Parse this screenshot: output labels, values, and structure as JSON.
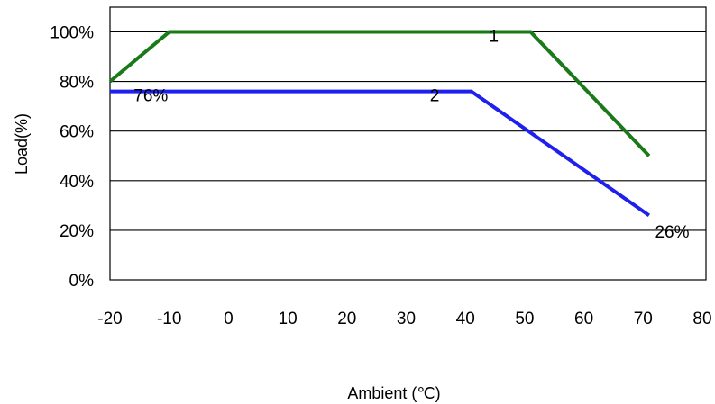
{
  "chart_data": {
    "type": "line",
    "xlabel": "Ambient (℃)",
    "ylabel": "Load(%)",
    "xlim": [
      -20,
      80
    ],
    "ylim": [
      0,
      110
    ],
    "x_ticks": [
      -20,
      -10,
      0,
      10,
      20,
      30,
      40,
      50,
      60,
      70,
      80
    ],
    "x_tick_labels": [
      "-20",
      "-10",
      "0",
      "10",
      "20",
      "30",
      "40",
      "50",
      "60",
      "70",
      "80"
    ],
    "y_ticks": [
      0,
      20,
      40,
      60,
      80,
      100
    ],
    "y_tick_labels": [
      "0%",
      "20%",
      "40%",
      "60%",
      "80%",
      "100%"
    ],
    "grid": "horizontal",
    "series": [
      {
        "name": "1",
        "color": "#1a7a1a",
        "points": [
          [
            -20,
            80
          ],
          [
            -10,
            100
          ],
          [
            51,
            100
          ],
          [
            71,
            50
          ]
        ]
      },
      {
        "name": "2",
        "color": "#2020ee",
        "points": [
          [
            -20,
            76
          ],
          [
            41,
            76
          ],
          [
            71,
            26
          ]
        ]
      }
    ],
    "annotations": [
      {
        "text": "1",
        "x": 44,
        "y": 96
      },
      {
        "text": "2",
        "x": 34,
        "y": 72
      },
      {
        "text": "76%",
        "x": -16,
        "y": 72
      },
      {
        "text": "26%",
        "x": 72,
        "y": 17
      }
    ]
  }
}
